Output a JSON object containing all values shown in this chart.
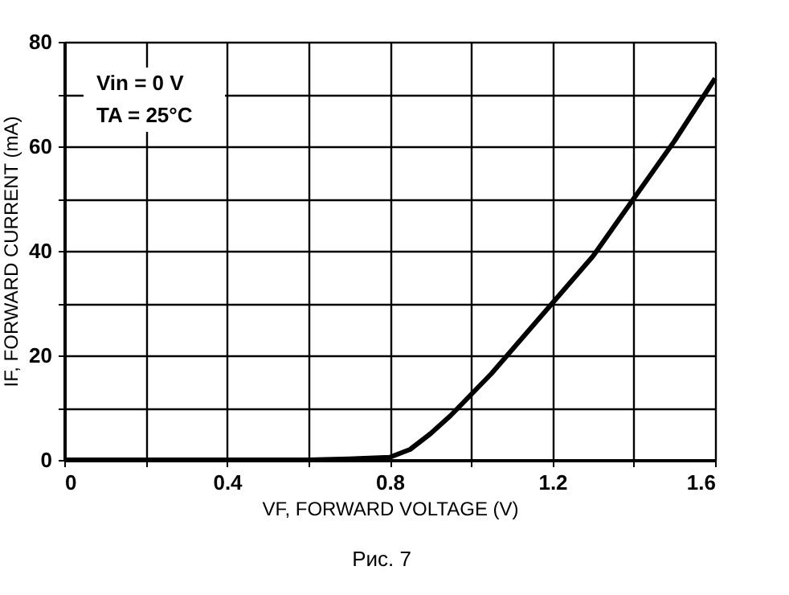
{
  "chart_data": {
    "type": "line",
    "xlabel": "VF, FORWARD VOLTAGE (V)",
    "ylabel": "IF, FORWARD CURRENT (mA)",
    "annotations": [
      "Vin = 0 V",
      "TA = 25°C",
      "Рис. 7"
    ],
    "x": [
      0,
      0.2,
      0.4,
      0.6,
      0.7,
      0.8,
      0.85,
      0.9,
      0.95,
      1.0,
      1.05,
      1.1,
      1.15,
      1.2,
      1.25,
      1.3,
      1.35,
      1.4,
      1.45,
      1.5,
      1.55,
      1.6
    ],
    "series": [
      {
        "color": "#000000",
        "values": [
          0,
          0,
          0,
          0,
          0.2,
          0.5,
          2,
          5,
          8.5,
          12.5,
          16.5,
          21,
          25.5,
          30,
          34.5,
          39,
          44.5,
          50,
          55.5,
          61,
          67,
          73
        ]
      }
    ],
    "xlim": [
      0,
      1.6
    ],
    "ylim": [
      0,
      80
    ],
    "xticks": [
      0,
      {
        "value": 0.2,
        "label": null
      },
      0.4,
      {
        "value": 0.6,
        "label": null
      },
      0.8,
      {
        "value": 1.0,
        "label": null
      },
      1.2,
      {
        "value": 1.4,
        "label": null
      },
      1.6
    ],
    "yticks": [
      0,
      {
        "value": 10,
        "label": null
      },
      20,
      {
        "value": 30,
        "label": null
      },
      40,
      {
        "value": 50,
        "label": null
      },
      60,
      {
        "value": 70,
        "label": null
      },
      80
    ],
    "grid": true,
    "marker": "none",
    "line_style": "solid"
  }
}
